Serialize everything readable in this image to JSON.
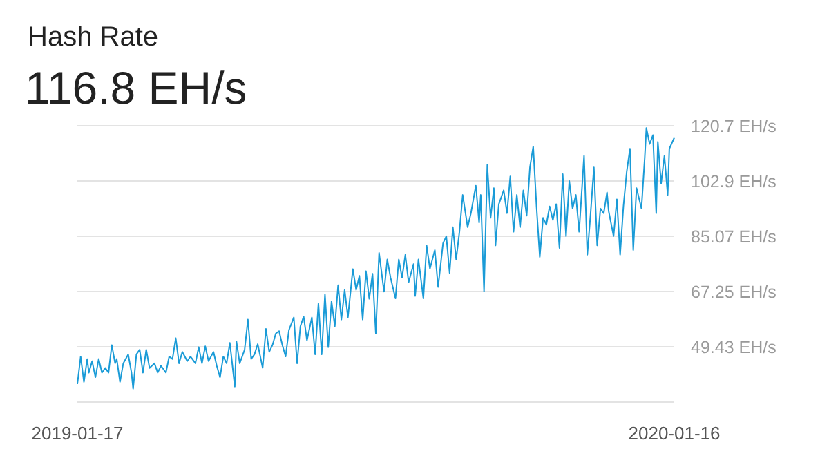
{
  "chart_data": {
    "type": "line",
    "title": "Hash Rate",
    "subtitle": "116.8 EH/s",
    "x": [
      "2019-01-17",
      "2019-01-19",
      "2019-01-21",
      "2019-01-23",
      "2019-01-24",
      "2019-01-26",
      "2019-01-28",
      "2019-01-30",
      "2019-02-01",
      "2019-02-03",
      "2019-02-05",
      "2019-02-07",
      "2019-02-09",
      "2019-02-10",
      "2019-02-12",
      "2019-02-14",
      "2019-02-17",
      "2019-02-19",
      "2019-02-20",
      "2019-02-22",
      "2019-02-24",
      "2019-02-26",
      "2019-02-28",
      "2019-03-02",
      "2019-03-05",
      "2019-03-07",
      "2019-03-09",
      "2019-03-12",
      "2019-03-14",
      "2019-03-16",
      "2019-03-18",
      "2019-03-20",
      "2019-03-22",
      "2019-03-25",
      "2019-03-27",
      "2019-03-30",
      "2019-04-01",
      "2019-04-03",
      "2019-04-05",
      "2019-04-07",
      "2019-04-10",
      "2019-04-12",
      "2019-04-14",
      "2019-04-16",
      "2019-04-18",
      "2019-04-20",
      "2019-04-23",
      "2019-04-24",
      "2019-04-26",
      "2019-04-29",
      "2019-05-01",
      "2019-05-03",
      "2019-05-05",
      "2019-05-07",
      "2019-05-10",
      "2019-05-12",
      "2019-05-14",
      "2019-05-16",
      "2019-05-18",
      "2019-05-20",
      "2019-05-22",
      "2019-05-24",
      "2019-05-26",
      "2019-05-29",
      "2019-05-31",
      "2019-06-02",
      "2019-06-04",
      "2019-06-06",
      "2019-06-09",
      "2019-06-11",
      "2019-06-13",
      "2019-06-15",
      "2019-06-17",
      "2019-06-19",
      "2019-06-21",
      "2019-06-23",
      "2019-06-25",
      "2019-06-27",
      "2019-06-29",
      "2019-07-01",
      "2019-07-04",
      "2019-07-06",
      "2019-07-08",
      "2019-07-10",
      "2019-07-12",
      "2019-07-14",
      "2019-07-16",
      "2019-07-18",
      "2019-07-20",
      "2019-07-23",
      "2019-07-25",
      "2019-07-27",
      "2019-07-30",
      "2019-08-01",
      "2019-08-03",
      "2019-08-05",
      "2019-08-07",
      "2019-08-10",
      "2019-08-11",
      "2019-08-13",
      "2019-08-16",
      "2019-08-18",
      "2019-08-20",
      "2019-08-23",
      "2019-08-25",
      "2019-08-28",
      "2019-08-30",
      "2019-09-01",
      "2019-09-03",
      "2019-09-05",
      "2019-09-07",
      "2019-09-09",
      "2019-09-12",
      "2019-09-14",
      "2019-09-17",
      "2019-09-19",
      "2019-09-20",
      "2019-09-22",
      "2019-09-24",
      "2019-09-26",
      "2019-09-28",
      "2019-09-29",
      "2019-10-01",
      "2019-10-04",
      "2019-10-06",
      "2019-10-08",
      "2019-10-10",
      "2019-10-12",
      "2019-10-14",
      "2019-10-16",
      "2019-10-18",
      "2019-10-20",
      "2019-10-22",
      "2019-10-24",
      "2019-10-26",
      "2019-10-28",
      "2019-10-30",
      "2019-11-01",
      "2019-11-03",
      "2019-11-05",
      "2019-11-07",
      "2019-11-09",
      "2019-11-11",
      "2019-11-13",
      "2019-11-15",
      "2019-11-17",
      "2019-11-19",
      "2019-11-22",
      "2019-11-24",
      "2019-11-26",
      "2019-11-28",
      "2019-11-30",
      "2019-12-02",
      "2019-12-04",
      "2019-12-06",
      "2019-12-07",
      "2019-12-10",
      "2019-12-12",
      "2019-12-14",
      "2019-12-16",
      "2019-12-18",
      "2019-12-20",
      "2019-12-22",
      "2019-12-24",
      "2019-12-27",
      "2019-12-29",
      "2019-12-30",
      "2020-01-01",
      "2020-01-03",
      "2020-01-05",
      "2020-01-06",
      "2020-01-08",
      "2020-01-10",
      "2020-01-12",
      "2020-01-13",
      "2020-01-16"
    ],
    "series": [
      {
        "color": "#1a9bd7",
        "values": [
          37.4,
          46.3,
          38.1,
          45.5,
          41.1,
          44.8,
          39.6,
          45.5,
          41.1,
          42.6,
          41.1,
          50.0,
          44.1,
          45.5,
          38.1,
          44.1,
          47.0,
          41.1,
          35.9,
          47.0,
          48.5,
          41.1,
          48.5,
          42.6,
          44.1,
          41.1,
          43.3,
          41.1,
          46.3,
          45.5,
          52.2,
          44.1,
          47.8,
          44.8,
          46.3,
          44.1,
          49.3,
          44.1,
          49.6,
          44.8,
          47.8,
          43.3,
          39.6,
          46.3,
          44.1,
          50.7,
          36.6,
          51.2,
          44.1,
          48.5,
          58.2,
          45.5,
          47.0,
          50.3,
          42.6,
          55.2,
          47.8,
          50.0,
          53.7,
          54.5,
          50.0,
          46.3,
          54.8,
          58.9,
          44.1,
          56.0,
          59.2,
          51.5,
          58.9,
          47.0,
          63.4,
          47.0,
          66.3,
          49.3,
          64.1,
          56.0,
          69.3,
          58.2,
          67.8,
          58.9,
          74.5,
          67.8,
          72.3,
          58.2,
          73.8,
          64.9,
          73.0,
          53.7,
          79.7,
          67.2,
          77.6,
          71.7,
          65.0,
          77.6,
          71.7,
          79.1,
          70.2,
          76.1,
          65.8,
          77.6,
          65.0,
          82.1,
          74.6,
          80.6,
          68.7,
          82.8,
          85.1,
          73.2,
          88.0,
          77.6,
          86.5,
          98.4,
          88.0,
          92.5,
          101.4,
          89.5,
          98.4,
          67.2,
          108.1,
          91.0,
          100.6,
          82.1,
          95.4,
          99.9,
          92.5,
          104.4,
          86.5,
          98.4,
          88.0,
          99.9,
          91.7,
          107.3,
          114.0,
          94.7,
          78.4,
          91.0,
          88.8,
          94.7,
          90.3,
          95.4,
          81.3,
          105.1,
          85.1,
          102.9,
          94.0,
          98.4,
          86.5,
          111.0,
          79.1,
          92.5,
          107.3,
          82.1,
          94.0,
          92.5,
          99.2,
          93.2,
          85.1,
          97.0,
          79.1,
          94.7,
          105.8,
          113.3,
          80.6,
          100.6,
          94.0,
          110.3,
          120.0,
          114.8,
          117.7,
          92.5,
          115.5,
          102.1,
          111.0,
          98.4,
          113.3,
          116.8
        ]
      }
    ],
    "xlim": [
      "2019-01-17",
      "2020-01-16"
    ],
    "xticks": [
      {
        "value": "2019-01-17",
        "label": "2019-01-17"
      },
      {
        "value": "2020-01-16",
        "label": "2020-01-16"
      }
    ],
    "ylim": [
      31.61,
      120.7
    ],
    "yticks": [
      {
        "value": 31.61,
        "label": null
      },
      {
        "value": 49.43,
        "label": "49.43 EH/s"
      },
      {
        "value": 67.25,
        "label": "67.25 EH/s"
      },
      {
        "value": 85.07,
        "label": "85.07 EH/s"
      },
      {
        "value": 102.9,
        "label": "102.9 EH/s"
      },
      {
        "value": 120.7,
        "label": "120.7 EH/s"
      }
    ],
    "grid": "y",
    "marker": "none",
    "line_style": "solid"
  }
}
